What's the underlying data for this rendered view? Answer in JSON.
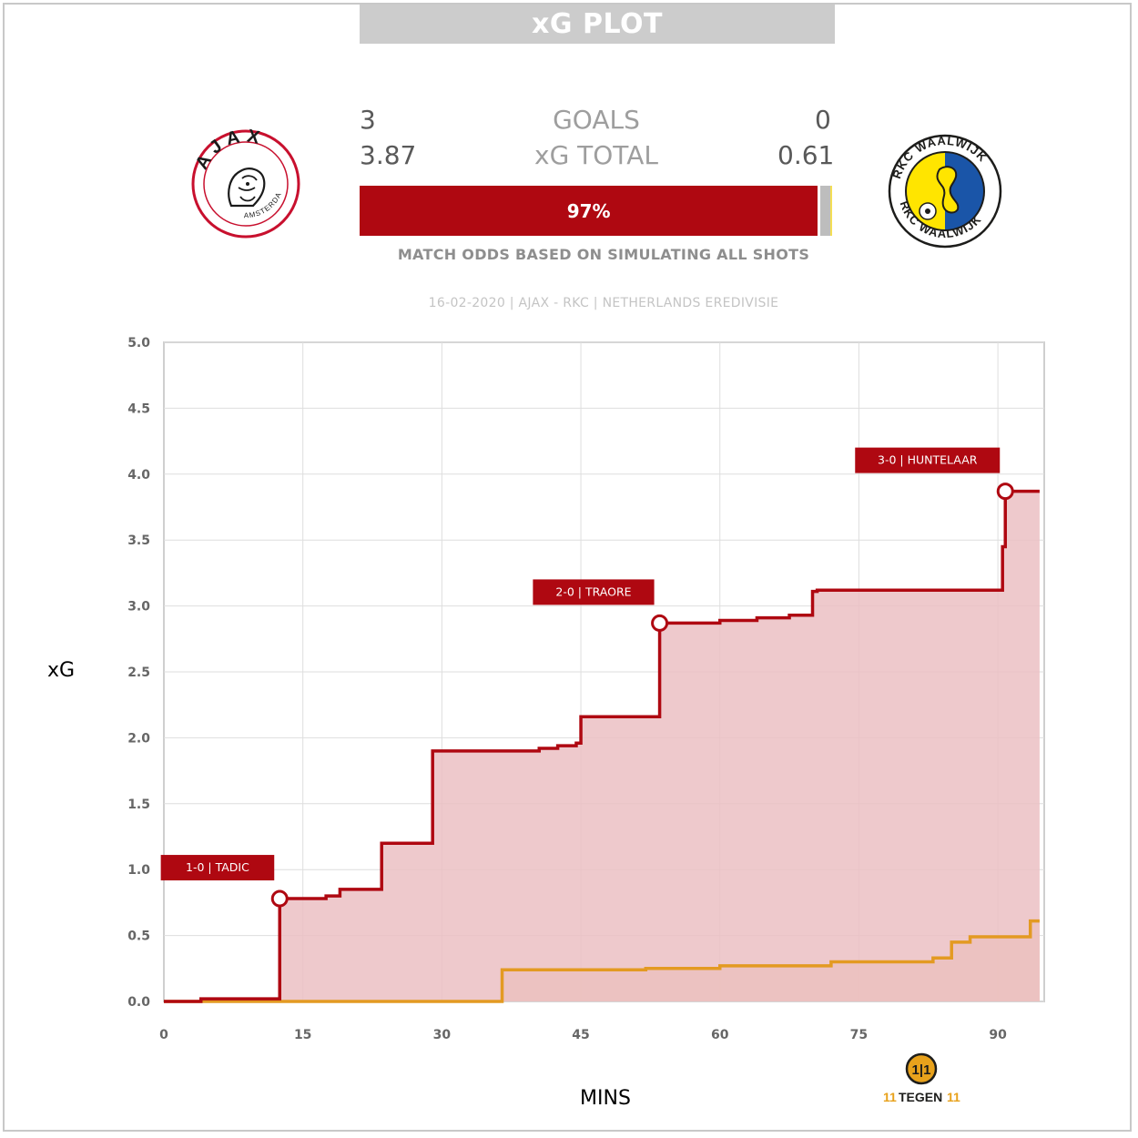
{
  "header": {
    "title": "xG PLOT"
  },
  "teams": {
    "home": {
      "name": "AJAX",
      "crest_text_top": "AJAX",
      "crest_text_bottom": "AMSTERDAM",
      "goals": "3",
      "xg_total": "3.87"
    },
    "away": {
      "name": "RKC",
      "crest_text_top": "RKC WAALWIJK",
      "crest_text_bottom": "RKC WAALWIJK",
      "goals": "0",
      "xg_total": "0.61"
    }
  },
  "stats": {
    "goals_label": "GOALS",
    "xg_label": "xG TOTAL"
  },
  "odds": {
    "home_pct": 97,
    "draw_pct": 2,
    "away_pct": 1,
    "home_label": "97%",
    "note": "MATCH ODDS BASED ON SIMULATING ALL SHOTS"
  },
  "match_info": "16-02-2020 | AJAX - RKC | NETHERLANDS EREDIVISIE",
  "colors": {
    "home": "#af0811",
    "home_fill": "#ebc0c3",
    "away": "#e39a22",
    "away_fill": "#efc6a5",
    "grid": "#dedede",
    "title_bg": "#cccccc"
  },
  "brand": {
    "text_left": "11",
    "text_mid": "TEGEN",
    "text_right": "11"
  },
  "chart_data": {
    "type": "line",
    "title": "",
    "xlabel": "MINS",
    "ylabel": "xG",
    "xlim": [
      0,
      95
    ],
    "ylim": [
      0,
      5
    ],
    "xticks": [
      0,
      15,
      30,
      45,
      60,
      75,
      90
    ],
    "yticks": [
      "0.0",
      "0.5",
      "1.0",
      "1.5",
      "2.0",
      "2.5",
      "3.0",
      "3.5",
      "4.0",
      "4.5",
      "5.0"
    ],
    "grid": true,
    "step": true,
    "series": [
      {
        "team": "home",
        "x": [
          0,
          4,
          12.5,
          17.5,
          19,
          23.5,
          29,
          40.5,
          42.5,
          44.5,
          45,
          53.5,
          60,
          64,
          67.5,
          70,
          70.5,
          74,
          90.5,
          90.8,
          94.5
        ],
        "y": [
          0.0,
          0.02,
          0.78,
          0.8,
          0.85,
          1.2,
          1.9,
          1.92,
          1.94,
          1.96,
          2.16,
          2.87,
          2.89,
          2.91,
          2.93,
          3.11,
          3.12,
          3.12,
          3.45,
          3.87,
          3.87
        ]
      },
      {
        "team": "away",
        "x": [
          0,
          36.5,
          52,
          60,
          72,
          83,
          85,
          87,
          93.5,
          94.5
        ],
        "y": [
          0.0,
          0.24,
          0.25,
          0.27,
          0.3,
          0.33,
          0.45,
          0.49,
          0.61,
          0.61
        ]
      }
    ],
    "annotations": [
      {
        "label": "1-0 | TADIC",
        "x": 12.5,
        "y": 0.78
      },
      {
        "label": "2-0 | TRAORE",
        "x": 53.5,
        "y": 2.87
      },
      {
        "label": "3-0 | HUNTELAAR",
        "x": 90.8,
        "y": 3.87
      }
    ]
  }
}
